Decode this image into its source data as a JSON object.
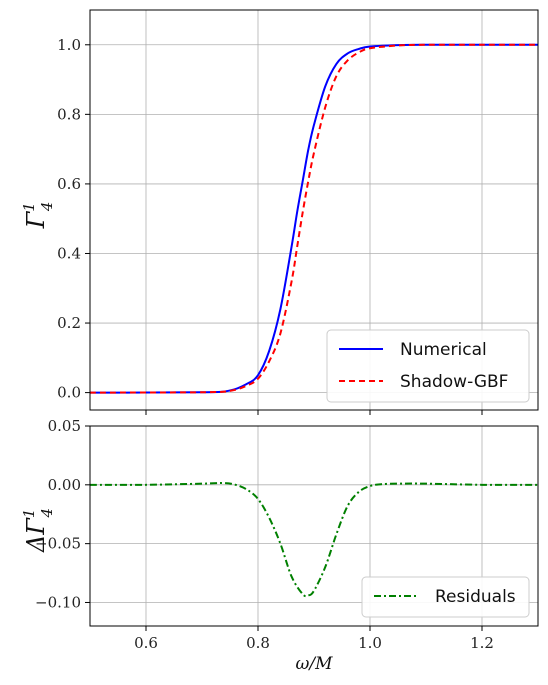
{
  "chart_data": [
    {
      "type": "line",
      "ylabel": "Γ",
      "ylabel_sup": "1",
      "ylabel_sub": "4",
      "xlim": [
        0.5,
        1.3
      ],
      "ylim": [
        -0.05,
        1.1
      ],
      "xticks": [
        0.6,
        0.8,
        1.0,
        1.2
      ],
      "yticks": [
        "0.0",
        "0.2",
        "0.4",
        "0.6",
        "0.8",
        "1.0"
      ],
      "ytick_values": [
        0.0,
        0.2,
        0.4,
        0.6,
        0.8,
        1.0
      ],
      "grid": true,
      "legend_position": "lower-right",
      "x": [
        0.5,
        0.7,
        0.75,
        0.78,
        0.8,
        0.82,
        0.84,
        0.86,
        0.87,
        0.88,
        0.89,
        0.9,
        0.92,
        0.94,
        0.96,
        0.98,
        1.0,
        1.05,
        1.1,
        1.2,
        1.3
      ],
      "series": [
        {
          "name": "Numerical",
          "color": "#0000ff",
          "dash": "solid",
          "values": [
            0.0,
            0.001,
            0.006,
            0.025,
            0.05,
            0.12,
            0.24,
            0.42,
            0.52,
            0.61,
            0.7,
            0.77,
            0.88,
            0.945,
            0.975,
            0.988,
            0.995,
            0.999,
            1.0,
            1.0,
            1.0
          ]
        },
        {
          "name": "Shadow-GBF",
          "color": "#ff0000",
          "dash": "dashed",
          "values": [
            0.0,
            0.001,
            0.005,
            0.02,
            0.04,
            0.09,
            0.17,
            0.32,
            0.42,
            0.52,
            0.61,
            0.69,
            0.82,
            0.91,
            0.955,
            0.978,
            0.99,
            0.998,
            1.0,
            1.0,
            1.0
          ]
        }
      ]
    },
    {
      "type": "line",
      "ylabel": "ΔΓ",
      "ylabel_sup": "1",
      "ylabel_sub": "4",
      "xlabel": "ω/M",
      "xlim": [
        0.5,
        1.3
      ],
      "ylim": [
        -0.12,
        0.05
      ],
      "xticks": [
        0.6,
        0.8,
        1.0,
        1.2
      ],
      "yticks": [
        "0.05",
        "0.00",
        "−0.05",
        "−0.10"
      ],
      "ytick_values": [
        0.05,
        0.0,
        -0.05,
        -0.1
      ],
      "grid": true,
      "legend_position": "lower-right",
      "x": [
        0.5,
        0.6,
        0.7,
        0.74,
        0.76,
        0.78,
        0.8,
        0.82,
        0.84,
        0.86,
        0.88,
        0.89,
        0.9,
        0.92,
        0.94,
        0.96,
        0.98,
        1.0,
        1.02,
        1.05,
        1.1,
        1.2,
        1.3
      ],
      "series": [
        {
          "name": "Residuals",
          "color": "#008000",
          "dash": "dashdot",
          "values": [
            0.0,
            0.0,
            0.001,
            0.0015,
            0.0,
            -0.004,
            -0.012,
            -0.028,
            -0.05,
            -0.078,
            -0.093,
            -0.094,
            -0.09,
            -0.07,
            -0.042,
            -0.018,
            -0.006,
            -0.001,
            0.0005,
            0.001,
            0.001,
            0.0,
            0.0
          ]
        }
      ]
    }
  ]
}
